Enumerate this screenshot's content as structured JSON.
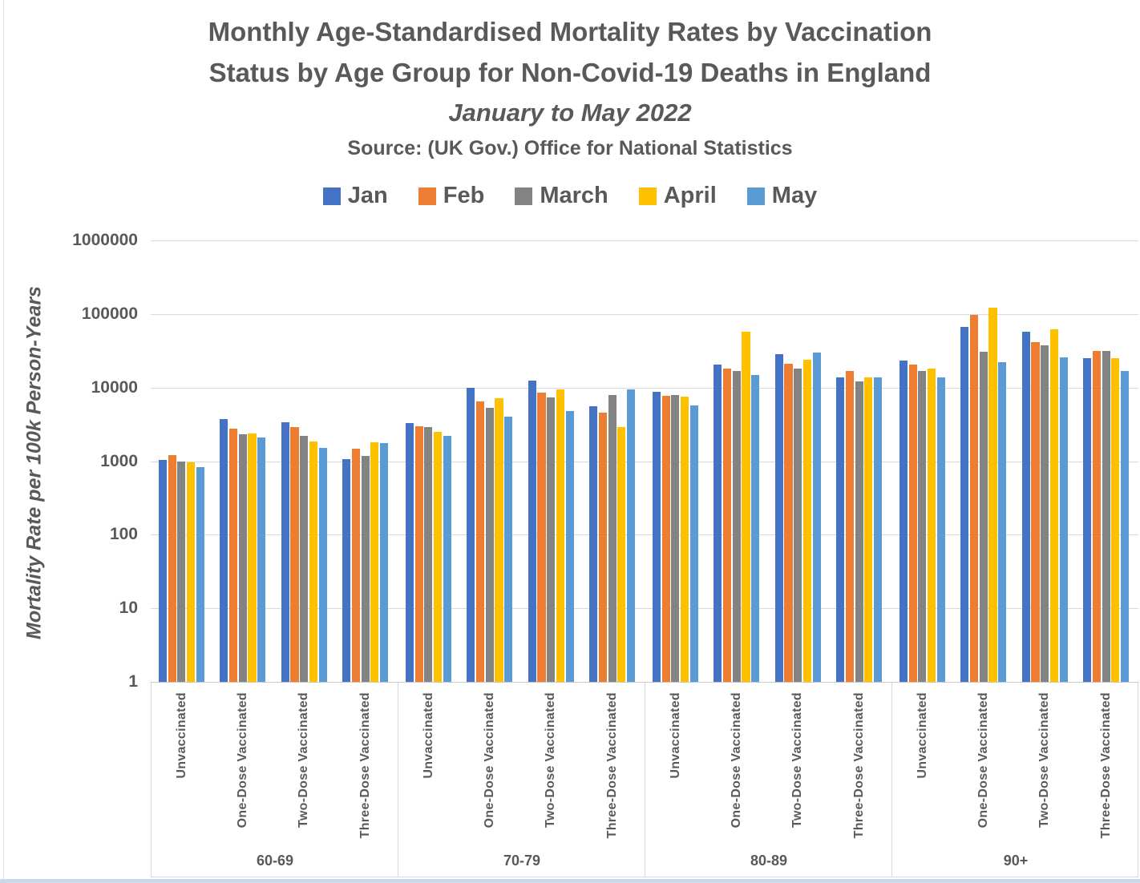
{
  "title": {
    "line1": "Monthly Age-Standardised Mortality Rates by Vaccination",
    "line2": "Status by Age Group for Non-Covid-19 Deaths in England",
    "subtitle": "January to May 2022",
    "source": "Source: (UK Gov.) Office for National Statistics"
  },
  "y_axis": {
    "title": "Mortality Rate per 100k Person-Years",
    "tick_labels": [
      "1000000",
      "100000",
      "10000",
      "1000",
      "100",
      "10",
      "1"
    ]
  },
  "colors": {
    "text": "#595959",
    "gridline": "#d9d9d9",
    "bottom_band": "#ccd7ea"
  },
  "chart_data": {
    "type": "bar",
    "y_scale": "log",
    "ylim": [
      1,
      1000000
    ],
    "ylabel": "Mortality Rate per 100k Person-Years",
    "grid": "horizontal-decades",
    "legend_position": "top-center",
    "series_names": [
      "Jan",
      "Feb",
      "March",
      "April",
      "May"
    ],
    "series_colors": [
      "#4472C4",
      "#ED7D31",
      "#838383",
      "#FFC000",
      "#5B9BD5"
    ],
    "age_groups": [
      {
        "label": "60-69",
        "clusters": [
          {
            "label": "Unvaccinated",
            "values": [
              1050,
              1200,
              1000,
              970,
              820
            ]
          },
          {
            "label": "One-Dose Vaccinated",
            "values": [
              3700,
              2750,
              2300,
              2350,
              2100
            ]
          },
          {
            "label": "Two-Dose Vaccinated",
            "values": [
              3400,
              2870,
              2200,
              1870,
              1500
            ]
          },
          {
            "label": "Three-Dose Vaccinated",
            "values": [
              1070,
              1490,
              1190,
              1820,
              1780
            ]
          }
        ]
      },
      {
        "label": "70-79",
        "clusters": [
          {
            "label": "Unvaccinated",
            "values": [
              3330,
              3010,
              2870,
              2520,
              2180
            ]
          },
          {
            "label": "One-Dose Vaccinated",
            "values": [
              10000,
              6540,
              5250,
              7100,
              4070
            ]
          },
          {
            "label": "Two-Dose Vaccinated",
            "values": [
              12300,
              8470,
              7430,
              9550,
              4740
            ]
          },
          {
            "label": "Three-Dose Vaccinated",
            "values": [
              5520,
              4530,
              8000,
              2940,
              9340
            ]
          }
        ]
      },
      {
        "label": "80-89",
        "clusters": [
          {
            "label": "Unvaccinated",
            "values": [
              8860,
              7630,
              8000,
              7450,
              5780
            ]
          },
          {
            "label": "One-Dose Vaccinated",
            "values": [
              20300,
              17900,
              17000,
              58100,
              14700
            ]
          },
          {
            "label": "Two-Dose Vaccinated",
            "values": [
              28100,
              20800,
              17900,
              23600,
              29600
            ]
          },
          {
            "label": "Three-Dose Vaccinated",
            "values": [
              13600,
              16600,
              12000,
              13600,
              13900
            ]
          }
        ]
      },
      {
        "label": "90+",
        "clusters": [
          {
            "label": "Unvaccinated",
            "values": [
              23000,
              20300,
              16600,
              17900,
              13600
            ]
          },
          {
            "label": "One-Dose Vaccinated",
            "values": [
              66000,
              96600,
              30300,
              120800,
              22400
            ]
          },
          {
            "label": "Two-Dose Vaccinated",
            "values": [
              56700,
              41900,
              37100,
              61400,
              25500
            ]
          },
          {
            "label": "Three-Dose Vaccinated",
            "values": [
              24800,
              31100,
              31100,
              24800,
              16600
            ]
          }
        ]
      }
    ]
  }
}
